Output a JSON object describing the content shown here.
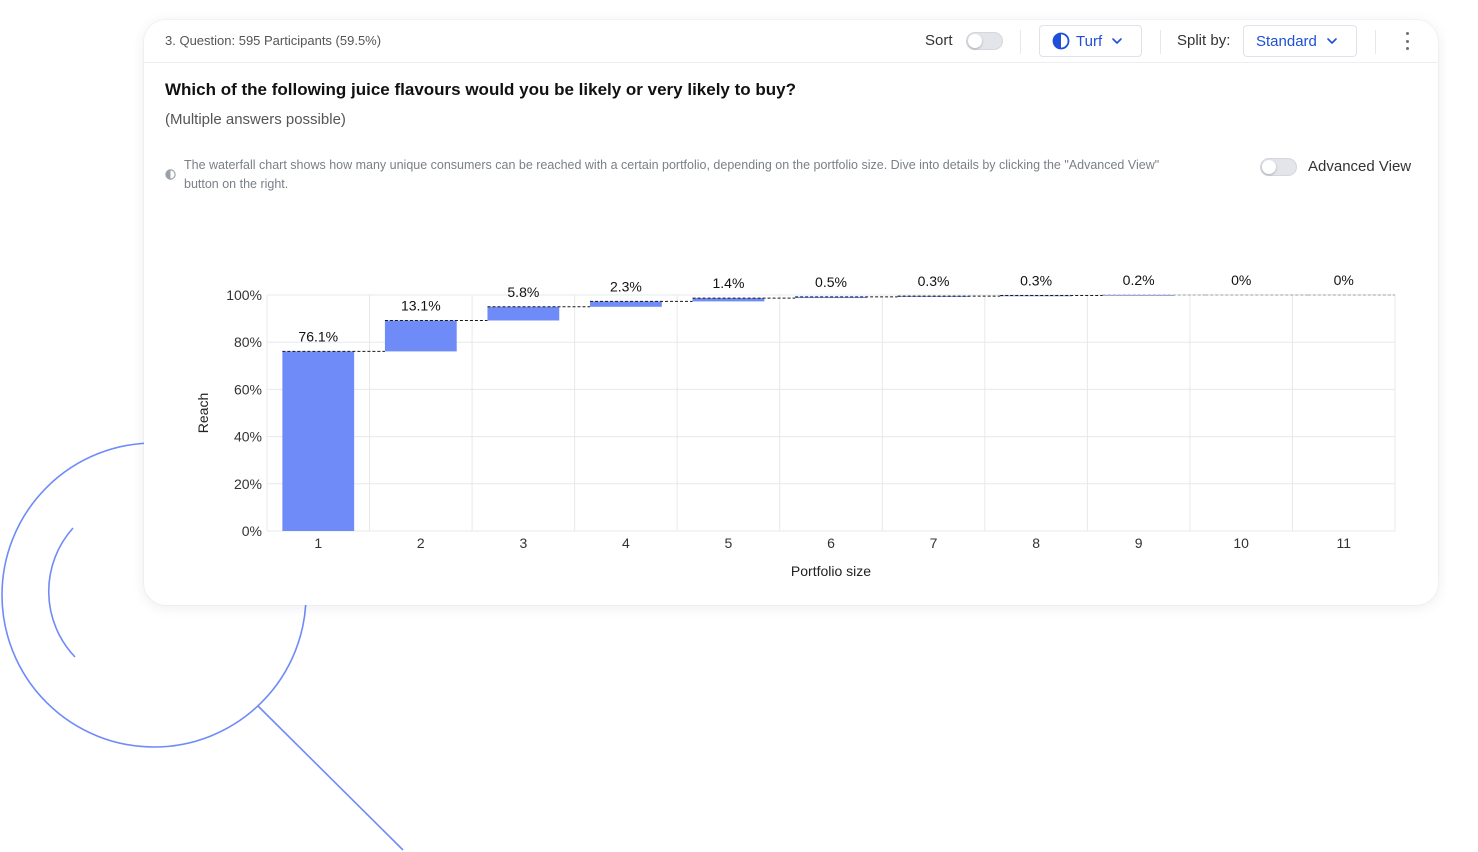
{
  "header": {
    "participants_text": "3. Question: 595 Participants (59.5%)",
    "sort_label": "Sort",
    "turf_label": "Turf",
    "split_label": "Split by:",
    "split_value": "Standard"
  },
  "question": {
    "title": "Which of the following juice flavours would you be likely or very likely to buy?",
    "hint": "(Multiple answers possible)"
  },
  "info": {
    "text": "The waterfall chart shows how many unique consumers can be reached with a certain portfolio, depending on the portfolio size. Dive into details by clicking the \"Advanced View\" button on the right.",
    "advanced_view_label": "Advanced View"
  },
  "colors": {
    "accent": "#1f4fd8",
    "bar": "#6e8bf7",
    "decor_line": "#6e8bf7"
  },
  "icons": [
    "contrast-icon",
    "chevron-down-icon",
    "kebab-menu-icon",
    "info-half-circle-icon"
  ],
  "chart_data": {
    "type": "bar",
    "subtype": "waterfall",
    "categories": [
      "1",
      "2",
      "3",
      "4",
      "5",
      "6",
      "7",
      "8",
      "9",
      "10",
      "11"
    ],
    "values": [
      76.1,
      13.1,
      5.8,
      2.3,
      1.4,
      0.5,
      0.3,
      0.3,
      0.2,
      0,
      0
    ],
    "data_labels": [
      "76.1%",
      "13.1%",
      "5.8%",
      "2.3%",
      "1.4%",
      "0.5%",
      "0.3%",
      "0.3%",
      "0.2%",
      "0%",
      "0%"
    ],
    "xlabel": "Portfolio size",
    "ylabel": "Reach",
    "ylim": [
      0,
      100
    ],
    "yticks": [
      "0%",
      "20%",
      "40%",
      "60%",
      "80%",
      "100%"
    ],
    "grid": true
  }
}
